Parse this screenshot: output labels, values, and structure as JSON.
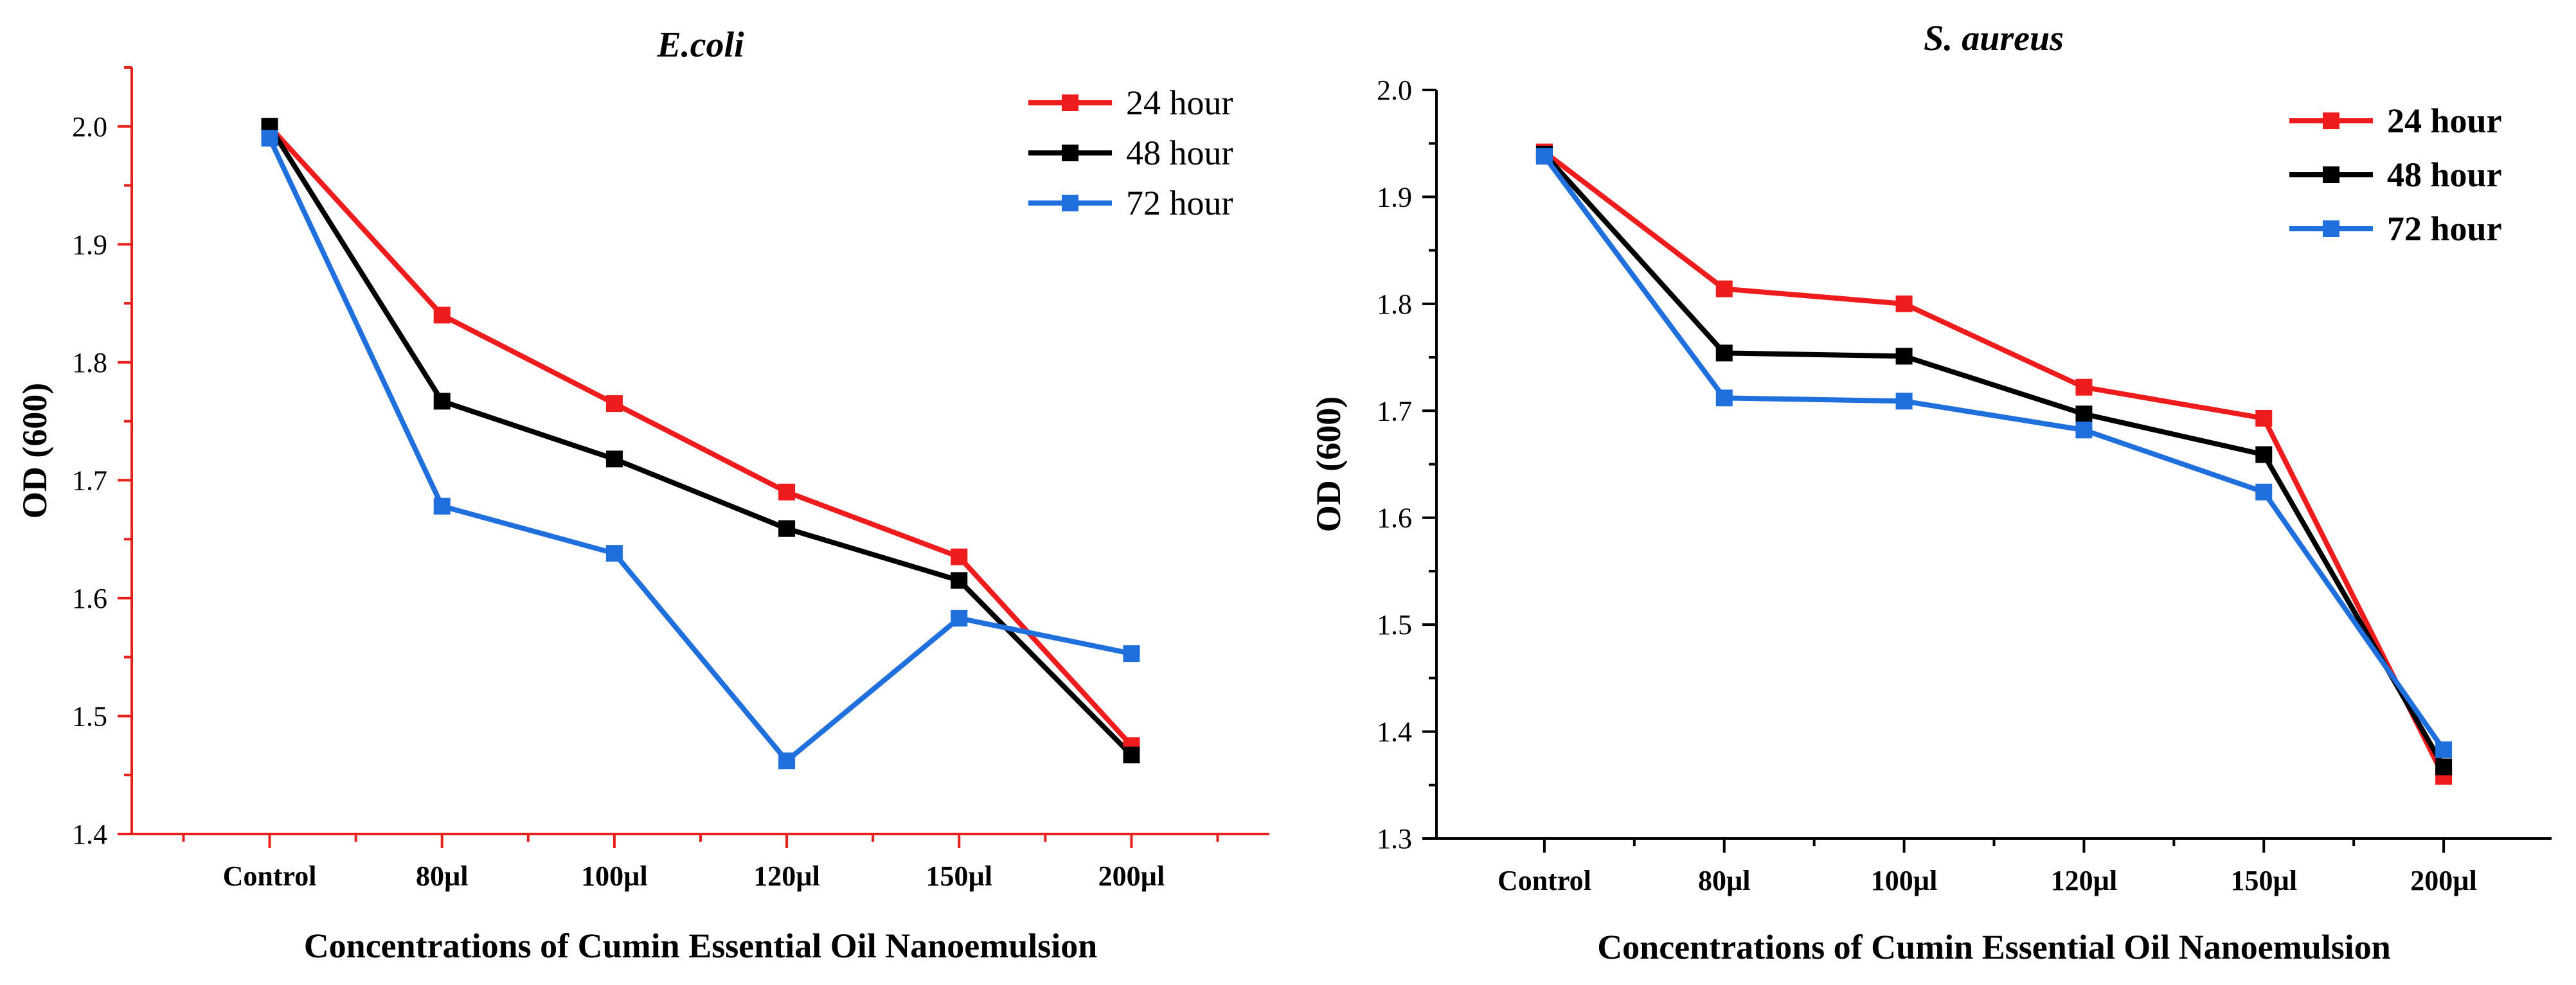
{
  "figure": {
    "panels": [
      "E.coli",
      "S. aureus"
    ]
  },
  "chart_data": [
    {
      "type": "line",
      "title": "E.coli",
      "title_style": "bold-italic",
      "xlabel": "Concentrations of Cumin Essential Oil Nanoemulsion",
      "ylabel": "OD (600)",
      "categories": [
        "Control",
        "80µl",
        "100µl",
        "120µl",
        "150µl",
        "200µl"
      ],
      "ylim": [
        1.4,
        2.05
      ],
      "yticks": [
        1.4,
        1.5,
        1.6,
        1.7,
        1.8,
        1.9,
        2.0
      ],
      "ytick_labels": [
        "1.4",
        "1.5",
        "1.6",
        "1.7",
        "1.8",
        "1.9",
        "2.0"
      ],
      "axis_color": "#e8201b",
      "grid": false,
      "legend_position": "top-right",
      "series": [
        {
          "name": "24 hour",
          "color": "#ee1c1c",
          "values": [
            2.0,
            1.84,
            1.765,
            1.69,
            1.635,
            1.475
          ]
        },
        {
          "name": "48 hour",
          "color": "#000000",
          "values": [
            2.0,
            1.767,
            1.718,
            1.659,
            1.615,
            1.467
          ]
        },
        {
          "name": "72 hour",
          "color": "#1f6fdc",
          "values": [
            1.99,
            1.678,
            1.638,
            1.462,
            1.583,
            1.553
          ]
        }
      ]
    },
    {
      "type": "line",
      "title": "S. aureus",
      "title_style": "bold-italic",
      "xlabel": "Concentrations of Cumin Essential Oil Nanoemulsion",
      "ylabel": "OD (600)",
      "categories": [
        "Control",
        "80µl",
        "100µl",
        "120µl",
        "150µl",
        "200µl"
      ],
      "ylim": [
        1.3,
        2.0
      ],
      "yticks": [
        1.3,
        1.4,
        1.5,
        1.6,
        1.7,
        1.8,
        1.9,
        2.0
      ],
      "ytick_labels": [
        "1.3",
        "1.4",
        "1.5",
        "1.6",
        "1.7",
        "1.8",
        "1.9",
        "2.0"
      ],
      "axis_color": "#000000",
      "grid": false,
      "legend_position": "top-right",
      "series": [
        {
          "name": "24 hour",
          "color": "#ee1c1c",
          "values": [
            1.942,
            1.814,
            1.8,
            1.722,
            1.693,
            1.358
          ]
        },
        {
          "name": "48 hour",
          "color": "#000000",
          "values": [
            1.94,
            1.754,
            1.751,
            1.697,
            1.659,
            1.367
          ]
        },
        {
          "name": "72 hour",
          "color": "#1f6fdc",
          "values": [
            1.938,
            1.712,
            1.709,
            1.682,
            1.624,
            1.383
          ]
        }
      ]
    }
  ]
}
